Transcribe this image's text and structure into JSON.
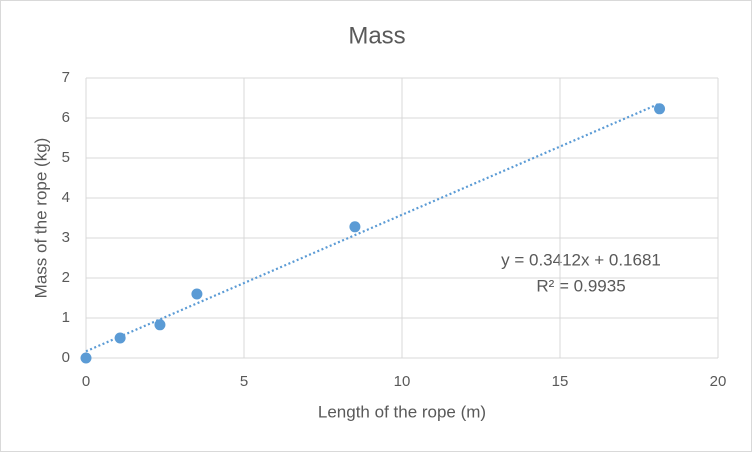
{
  "chart_data": {
    "type": "scatter",
    "title": "Mass",
    "x_label": "Length of the rope (m)",
    "y_label": "Mass of the rope (kg)",
    "series": [
      {
        "name": "Mass",
        "color": "#5b9bd5",
        "x": [
          0,
          1.08,
          2.34,
          3.51,
          8.51,
          18.15
        ],
        "values": [
          0,
          0.5,
          0.83,
          1.6,
          3.28,
          6.23
        ]
      }
    ],
    "trendline": {
      "slope": 0.3412,
      "intercept": 0.1681,
      "color": "#5b9bd5",
      "equation": "y = 0.3412x + 0.1681",
      "r2_label": "R² = 0.9935"
    },
    "xlim": [
      0,
      20
    ],
    "xticks": [
      0,
      5,
      10,
      15,
      20
    ],
    "ylim": [
      0,
      7
    ],
    "yticks": [
      0,
      1,
      2,
      3,
      4,
      5,
      6,
      7
    ],
    "grid": true
  }
}
